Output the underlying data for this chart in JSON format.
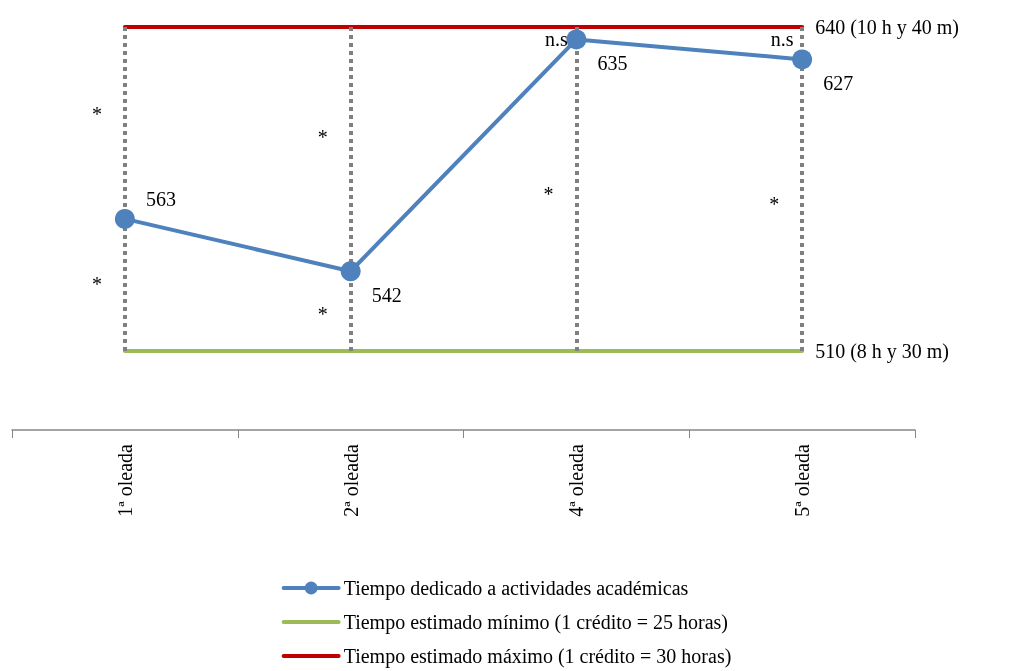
{
  "chart_data": {
    "type": "line",
    "categories": [
      "1ª oleada",
      "2ª oleada",
      "4ª oleada",
      "5ª oleada"
    ],
    "series": [
      {
        "name": "Tiempo dedicado a actividades académicas",
        "color": "#4f81bd",
        "values": [
          563,
          542,
          635,
          627
        ],
        "marker": "circle",
        "value_labels": [
          "563",
          "542",
          "635",
          "627"
        ]
      },
      {
        "name": "Tiempo estimado mínimo (1 crédito = 25 horas)",
        "color": "#9bbb59",
        "values": [
          510,
          510,
          510,
          510
        ],
        "marker": "none",
        "value_labels": [
          null,
          null,
          null,
          "510 (8 h y 30 m)"
        ]
      },
      {
        "name": "Tiempo estimado máximo (1 crédito = 30 horas)",
        "color": "#c00000",
        "values": [
          640,
          640,
          640,
          640
        ],
        "marker": "none",
        "value_labels": [
          null,
          null,
          null,
          "640 (10 h y 40 m)"
        ]
      }
    ],
    "ylim": [
      510,
      640
    ],
    "tick_labels": "x",
    "grid": false,
    "legend": "bottom",
    "line_style": "solid",
    "ref_lines": [
      {
        "axis": "x",
        "value": "1ª oleada",
        "color": "#808080",
        "line_style": "dotted"
      },
      {
        "axis": "x",
        "value": "2ª oleada",
        "color": "#808080",
        "line_style": "dotted"
      },
      {
        "axis": "x",
        "value": "4ª oleada",
        "color": "#808080",
        "line_style": "dotted"
      },
      {
        "axis": "x",
        "value": "5ª oleada",
        "color": "#808080",
        "line_style": "dotted"
      }
    ],
    "annotations": [
      {
        "text": "*",
        "x": "1ª oleada",
        "y": 605
      },
      {
        "text": "*",
        "x": "1ª oleada",
        "y": 537
      },
      {
        "text": "*",
        "x": "2ª oleada",
        "y": 596
      },
      {
        "text": "*",
        "x": "2ª oleada",
        "y": 525
      },
      {
        "text": "*",
        "x": "4ª oleada",
        "y": 573
      },
      {
        "text": "*",
        "x": "5ª oleada",
        "y": 569
      },
      {
        "text": "n.s",
        "x": "4ª oleada",
        "y": 635
      },
      {
        "text": "n.s",
        "x": "5ª oleada",
        "y": 635
      }
    ]
  }
}
